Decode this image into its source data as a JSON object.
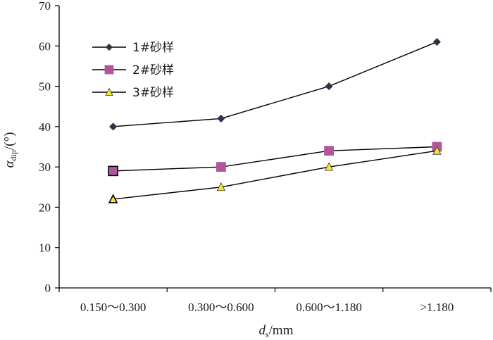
{
  "chart_data": {
    "type": "line",
    "categories": [
      "0.150～0.300",
      "0.300～0.600",
      "0.600～1.180",
      ">1.180"
    ],
    "series": [
      {
        "name": "1#砂样",
        "values": [
          40,
          42,
          50,
          61
        ],
        "marker": "diamond",
        "color": "#3b2b4f"
      },
      {
        "name": "2#砂样",
        "values": [
          29,
          30,
          34,
          35
        ],
        "marker": "square",
        "color": "#b1569b"
      },
      {
        "name": "3#砂样",
        "values": [
          22,
          25,
          30,
          34
        ],
        "marker": "triangle",
        "color": "#f2ea2a"
      }
    ],
    "ylim": [
      0,
      70
    ],
    "yticks": [
      0,
      10,
      20,
      30,
      40,
      50,
      60,
      70
    ],
    "ylabel": {
      "symbol": "α",
      "subscript": "dip",
      "suffix": "/(°)"
    },
    "xlabel": {
      "symbol": "d",
      "subscript": "s",
      "suffix": "/mm"
    },
    "legend_position": "top-left",
    "grid": false
  }
}
